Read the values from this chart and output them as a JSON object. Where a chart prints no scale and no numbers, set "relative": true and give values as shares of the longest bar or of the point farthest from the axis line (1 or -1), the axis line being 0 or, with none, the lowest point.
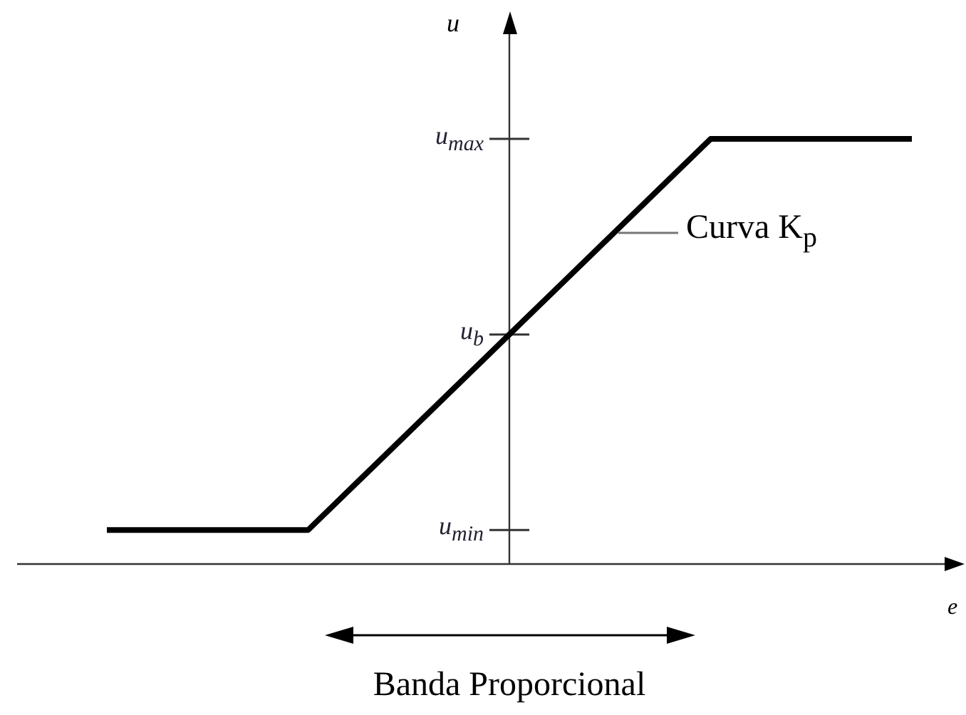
{
  "chart_data": {
    "type": "line",
    "xlabel": "e",
    "ylabel": "u",
    "relative": true,
    "categories": [
      null,
      null,
      null,
      null,
      null
    ],
    "series": [
      {
        "color": "#000000",
        "values": [
          0.08,
          0.08,
          0.54,
          1,
          1
        ]
      }
    ],
    "grid": false,
    "legend": false,
    "marker": "none",
    "line_style": "solid",
    "annotations": [
      "Curva K$_{p}$",
      "Banda Proporcional",
      "u$_{min}$",
      "u$_{b}$",
      "u$_{max}$"
    ]
  }
}
